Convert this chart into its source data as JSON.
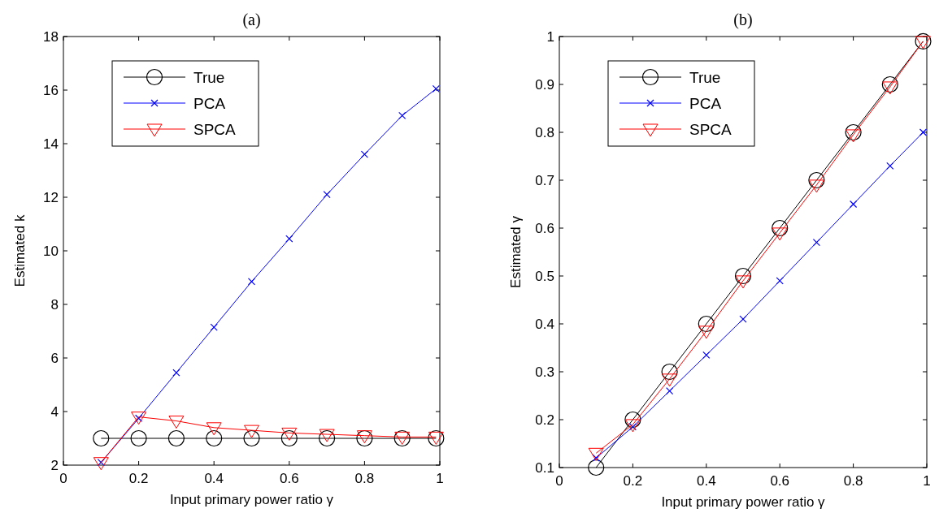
{
  "chart_data": [
    {
      "type": "line",
      "title": "(a)",
      "xlabel": "Input primary power ratio γ",
      "ylabel": "Estimated k",
      "x": [
        0.1,
        0.2,
        0.3,
        0.4,
        0.5,
        0.6,
        0.7,
        0.8,
        0.9,
        0.99
      ],
      "xlim": [
        0,
        1
      ],
      "xticks": [
        0,
        0.2,
        0.4,
        0.6,
        0.8,
        1
      ],
      "ylim": [
        2,
        18
      ],
      "yticks": [
        2,
        4,
        6,
        8,
        10,
        12,
        14,
        16,
        18
      ],
      "grid": false,
      "legend": "top left",
      "series": [
        {
          "name": "True",
          "color": "#000000",
          "marker": "circle",
          "values": [
            3,
            3,
            3,
            3,
            3,
            3,
            3,
            3,
            3,
            3
          ]
        },
        {
          "name": "PCA",
          "color": "#0000ff",
          "marker": "cross",
          "values": [
            2.1,
            3.75,
            5.45,
            7.15,
            8.85,
            10.45,
            12.1,
            13.6,
            15.05,
            16.05
          ]
        },
        {
          "name": "SPCA",
          "color": "#ff0000",
          "marker": "triangle",
          "values": [
            2.1,
            3.8,
            3.65,
            3.4,
            3.3,
            3.2,
            3.15,
            3.1,
            3.05,
            3.05
          ]
        }
      ]
    },
    {
      "type": "line",
      "title": "(b)",
      "xlabel": "Input primary power ratio γ",
      "ylabel": "Estimated γ",
      "x": [
        0.1,
        0.2,
        0.3,
        0.4,
        0.5,
        0.6,
        0.7,
        0.8,
        0.9,
        0.99
      ],
      "xlim": [
        0,
        1
      ],
      "xticks": [
        0,
        0.2,
        0.4,
        0.6,
        0.8,
        1
      ],
      "ylim": [
        0.1,
        1
      ],
      "yticks": [
        0.1,
        0.2,
        0.3,
        0.4,
        0.5,
        0.6,
        0.7,
        0.8,
        0.9,
        1
      ],
      "grid": false,
      "legend": "top left",
      "series": [
        {
          "name": "True",
          "color": "#000000",
          "marker": "circle",
          "values": [
            0.1,
            0.2,
            0.3,
            0.4,
            0.5,
            0.6,
            0.7,
            0.8,
            0.9,
            0.99
          ]
        },
        {
          "name": "PCA",
          "color": "#0000ff",
          "marker": "cross",
          "values": [
            0.12,
            0.185,
            0.26,
            0.335,
            0.41,
            0.49,
            0.57,
            0.65,
            0.73,
            0.8
          ]
        },
        {
          "name": "SPCA",
          "color": "#ff0000",
          "marker": "triangle",
          "values": [
            0.13,
            0.19,
            0.285,
            0.385,
            0.49,
            0.59,
            0.69,
            0.795,
            0.895,
            0.99
          ]
        }
      ]
    }
  ]
}
